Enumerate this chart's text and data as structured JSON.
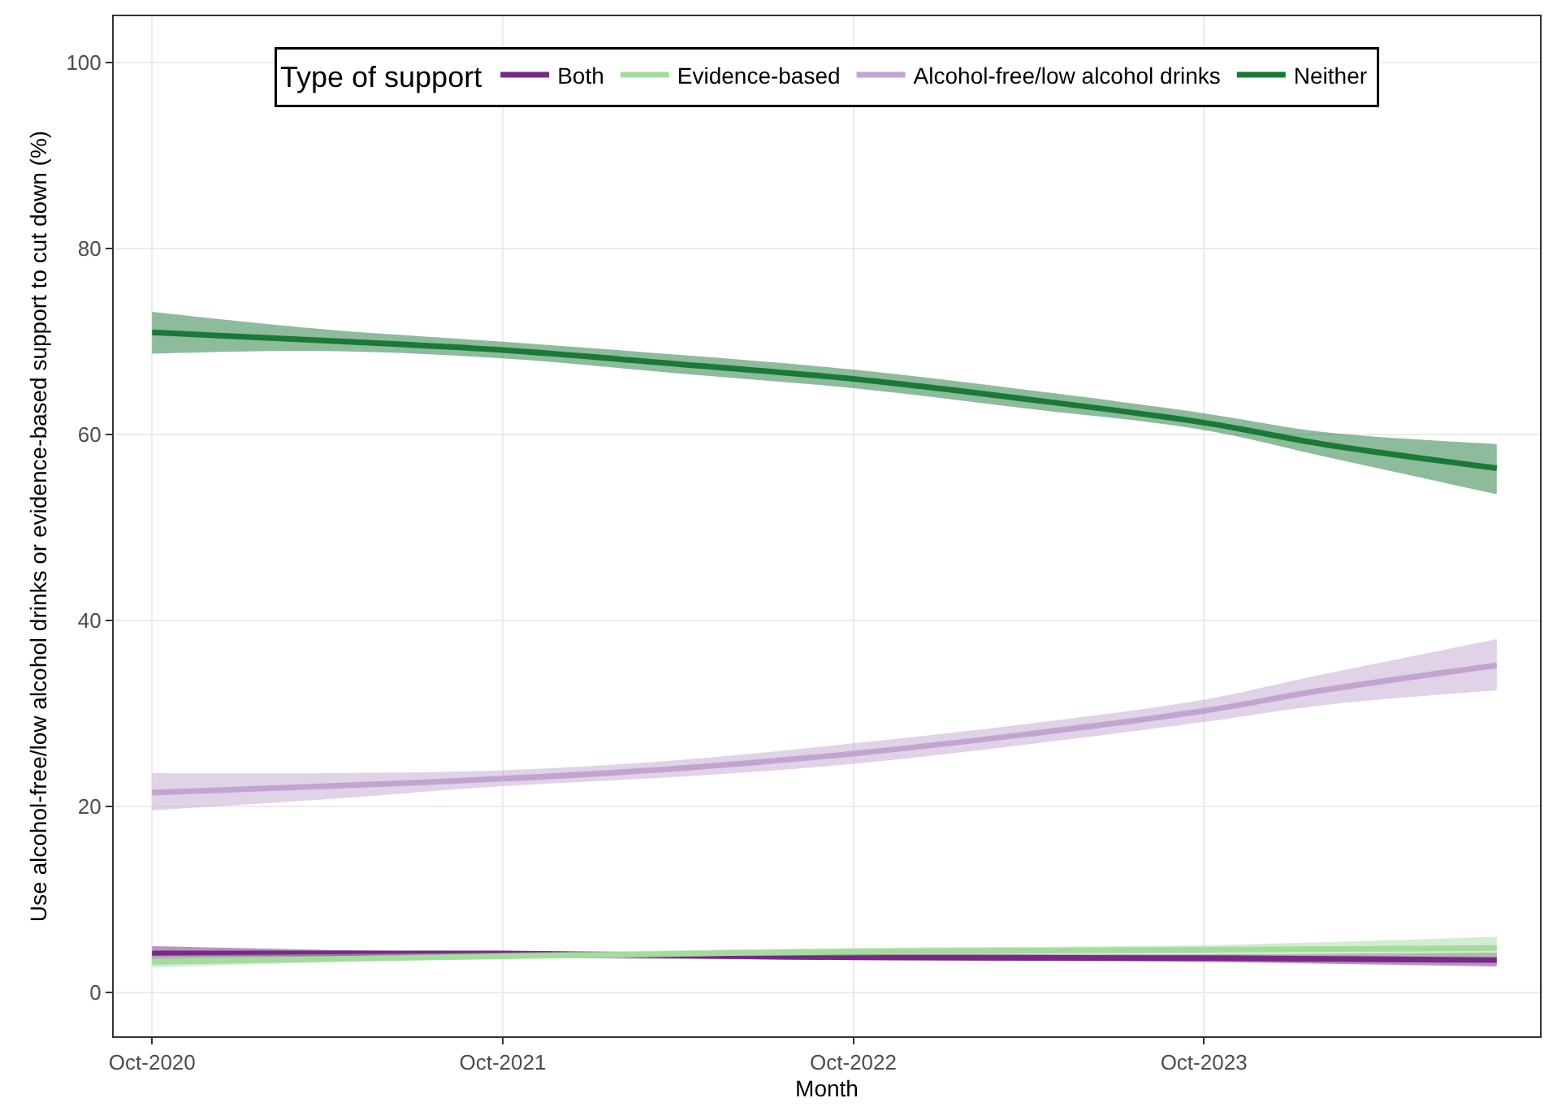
{
  "chart_data": {
    "type": "line",
    "xlabel": "Month",
    "ylabel": "Use alcohol-free/low alcohol drinks or evidence-based support to cut down (%)",
    "legend_title": "Type of support",
    "legend": "top",
    "grid": true,
    "marker": "none",
    "line_style": "solid",
    "xlim": [
      "2020-08-22",
      "2024-09-15"
    ],
    "xticks": [
      {
        "value": "2020-10",
        "label": "Oct-2020"
      },
      {
        "value": "2021-10",
        "label": "Oct-2021"
      },
      {
        "value": "2022-10",
        "label": "Oct-2022"
      },
      {
        "value": "2023-10",
        "label": "Oct-2023"
      }
    ],
    "ylim": [
      -4.7,
      105
    ],
    "yticks": [
      0,
      20,
      40,
      60,
      80,
      100
    ],
    "series": [
      {
        "name": "Both",
        "color": "#762a83",
        "x": [
          "2020-10",
          "2021-10",
          "2022-10",
          "2023-10",
          "2024-08"
        ],
        "values": [
          4.2,
          4.2,
          3.8,
          3.7,
          3.5
        ],
        "lower": [
          3.4,
          3.7,
          3.5,
          3.3,
          2.8
        ],
        "upper": [
          5.0,
          4.3,
          4.2,
          4.1,
          4.3
        ]
      },
      {
        "name": "Evidence-based",
        "color": "#a6dba0",
        "x": [
          "2020-10",
          "2021-10",
          "2022-10",
          "2023-10",
          "2024-08"
        ],
        "values": [
          3.3,
          3.9,
          4.4,
          4.6,
          4.8
        ],
        "lower": [
          2.7,
          3.7,
          4.0,
          4.1,
          3.8
        ],
        "upper": [
          4.0,
          4.3,
          4.8,
          5.1,
          6.0
        ]
      },
      {
        "name": "Alcohol-free/low alcohol drinks",
        "color": "#c2a5cf",
        "x": [
          "2020-10",
          "2021-04",
          "2021-10",
          "2022-04",
          "2022-10",
          "2023-04",
          "2023-10",
          "2024-02",
          "2024-08"
        ],
        "values": [
          21.5,
          22.2,
          23.0,
          24.1,
          25.7,
          27.8,
          30.3,
          32.5,
          35.2
        ],
        "lower": [
          19.6,
          20.8,
          22.2,
          23.2,
          24.6,
          26.7,
          29.1,
          30.9,
          32.5
        ],
        "upper": [
          23.6,
          23.6,
          23.9,
          25.0,
          26.8,
          28.9,
          31.5,
          34.2,
          38.0
        ]
      },
      {
        "name": "Neither",
        "color": "#1b7837",
        "x": [
          "2020-10",
          "2021-04",
          "2021-10",
          "2022-04",
          "2022-10",
          "2023-04",
          "2023-10",
          "2024-02",
          "2024-08"
        ],
        "values": [
          71.0,
          70.1,
          69.1,
          67.6,
          66.0,
          63.8,
          61.3,
          59.0,
          56.4
        ],
        "lower": [
          68.7,
          69.0,
          68.2,
          66.6,
          65.0,
          62.8,
          60.5,
          57.7,
          53.6
        ],
        "upper": [
          73.2,
          71.3,
          70.0,
          68.6,
          67.0,
          64.8,
          62.3,
          60.3,
          59.0
        ]
      }
    ]
  }
}
